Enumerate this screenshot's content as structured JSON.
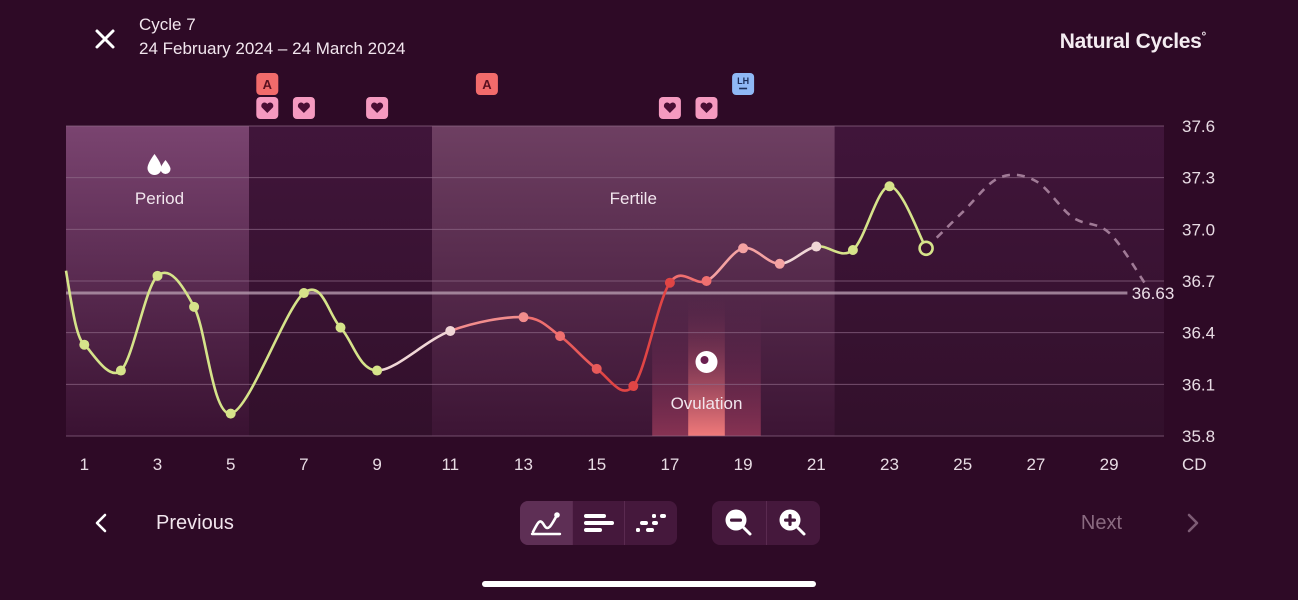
{
  "header": {
    "cycle_title": "Cycle 7",
    "cycle_dates": "24 February 2024 – 24 March 2024",
    "brand": "Natural Cycles",
    "brand_mark": "°"
  },
  "chart_data": {
    "type": "line",
    "x_label": "CD",
    "x_ticks": [
      1,
      3,
      5,
      7,
      9,
      11,
      13,
      15,
      17,
      19,
      21,
      23,
      25,
      27,
      29
    ],
    "y_ticks": [
      "37.6",
      "37.3",
      "37.0",
      "36.7",
      "36.4",
      "36.1",
      "35.8"
    ],
    "ylim": [
      35.8,
      37.6
    ],
    "xlim": [
      0.5,
      30.5
    ],
    "average_line": {
      "value": 36.63,
      "label": "36.63"
    },
    "phases": [
      {
        "name": "period",
        "label": "Period",
        "start": 0.5,
        "end": 5.5,
        "icon": "blood-drops-icon"
      },
      {
        "name": "fertile",
        "label": "Fertile",
        "start": 10.5,
        "end": 21.5
      },
      {
        "name": "ovulation",
        "label": "Ovulation",
        "start": 17.5,
        "end": 18.5,
        "icon": "ovulation-icon"
      }
    ],
    "series": [
      {
        "points": [
          {
            "x": 1,
            "y": 36.33,
            "color": "#d6e38a"
          },
          {
            "x": 2,
            "y": 36.18,
            "color": "#d6e38a"
          },
          {
            "x": 3,
            "y": 36.73,
            "color": "#d6e38a"
          },
          {
            "x": 4,
            "y": 36.55,
            "color": "#d6e38a"
          },
          {
            "x": 5,
            "y": 35.93,
            "color": "#d6e38a"
          },
          {
            "x": 7,
            "y": 36.63,
            "color": "#d6e38a"
          },
          {
            "x": 8,
            "y": 36.43,
            "color": "#d6e38a"
          },
          {
            "x": 9,
            "y": 36.18,
            "color": "#d6e38a"
          },
          {
            "x": 11,
            "y": 36.41,
            "color": "#f0d6d6"
          },
          {
            "x": 13,
            "y": 36.49,
            "color": "#f28c8c"
          },
          {
            "x": 14,
            "y": 36.38,
            "color": "#ef6f6f"
          },
          {
            "x": 15,
            "y": 36.19,
            "color": "#e85a5a"
          },
          {
            "x": 16,
            "y": 36.09,
            "color": "#e04545"
          },
          {
            "x": 17,
            "y": 36.69,
            "color": "#e04545"
          },
          {
            "x": 18,
            "y": 36.7,
            "color": "#f07070"
          },
          {
            "x": 19,
            "y": 36.89,
            "color": "#f4a2a2"
          },
          {
            "x": 20,
            "y": 36.8,
            "color": "#f4a2a2"
          },
          {
            "x": 21,
            "y": 36.9,
            "color": "#f0d6d6"
          },
          {
            "x": 22,
            "y": 36.88,
            "color": "#d6e38a"
          },
          {
            "x": 23,
            "y": 37.25,
            "color": "#d6e38a"
          },
          {
            "x": 24,
            "y": 36.89,
            "color": "#d6e38a",
            "hollow": true
          }
        ]
      },
      {
        "name": "prediction",
        "dashed": true,
        "points": [
          {
            "x": 24,
            "y": 36.89
          },
          {
            "x": 25,
            "y": 37.1
          },
          {
            "x": 26,
            "y": 37.3
          },
          {
            "x": 27,
            "y": 37.28
          },
          {
            "x": 28,
            "y": 37.07
          },
          {
            "x": 29,
            "y": 36.98
          },
          {
            "x": 30,
            "y": 36.68
          }
        ]
      }
    ],
    "markers": [
      {
        "type": "A",
        "day": 6,
        "row": 0
      },
      {
        "type": "heart",
        "day": 6,
        "row": 1
      },
      {
        "type": "heart",
        "day": 7,
        "row": 1
      },
      {
        "type": "heart",
        "day": 9,
        "row": 1
      },
      {
        "type": "A",
        "day": 12,
        "row": 0
      },
      {
        "type": "heart",
        "day": 17,
        "row": 1
      },
      {
        "type": "heart",
        "day": 18,
        "row": 1
      },
      {
        "type": "LH",
        "day": 19,
        "row": 0
      }
    ],
    "colors": {
      "follicular": "#d6e38a",
      "fertile_red": "#e04545",
      "fertile_pink": "#f4a2a2",
      "marker_a": "#f26b6b",
      "marker_heart": "#f59ac0",
      "marker_lh": "#8fb8f5",
      "ovulation_bar": "#f07a7a"
    }
  },
  "footer": {
    "previous_label": "Previous",
    "next_label": "Next",
    "view_buttons": [
      "line-chart-icon",
      "list-view-icon",
      "scatter-view-icon"
    ],
    "zoom_buttons": [
      "zoom-out-icon",
      "zoom-in-icon"
    ]
  }
}
